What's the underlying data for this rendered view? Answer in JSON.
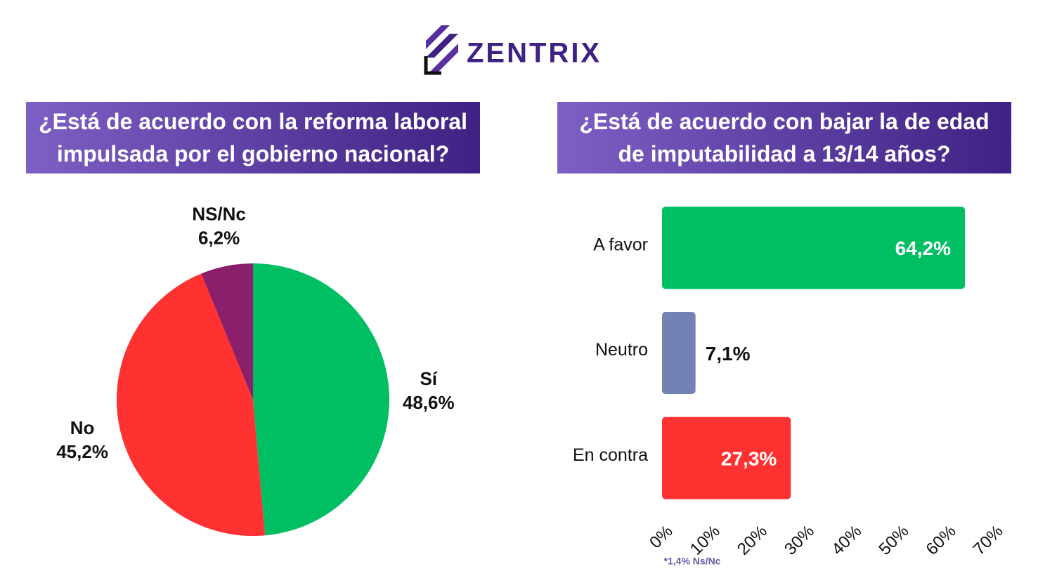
{
  "header": {
    "brand": "ZENTRIX"
  },
  "chart_data": [
    {
      "type": "pie",
      "title": "¿Está de acuerdo con la reforma laboral impulsada por el gobierno nacional?",
      "categories": [
        "Sí",
        "No",
        "NS/Nc"
      ],
      "values": [
        48.6,
        45.2,
        6.2
      ],
      "value_labels": [
        "48,6%",
        "45,2%",
        "6,2%"
      ],
      "colors": [
        "#00bf63",
        "#ff3131",
        "#8c1f6c"
      ]
    },
    {
      "type": "hbar",
      "title": "¿Está de acuerdo con bajar la de edad de imputabilidad a 13/14 años?",
      "categories": [
        "A favor",
        "Neutro",
        "En contra"
      ],
      "values": [
        64.2,
        7.1,
        27.3
      ],
      "value_labels": [
        "64,2%",
        "7,1%",
        "27,3%"
      ],
      "colors": [
        "#00bf63",
        "#7382b5",
        "#ff3131"
      ],
      "xlim": [
        0,
        70
      ],
      "xticks": [
        {
          "value": 0,
          "label": "0%"
        },
        {
          "value": 10,
          "label": "10%"
        },
        {
          "value": 20,
          "label": "20%"
        },
        {
          "value": 30,
          "label": "30%"
        },
        {
          "value": 40,
          "label": "40%"
        },
        {
          "value": 50,
          "label": "50%"
        },
        {
          "value": 60,
          "label": "60%"
        },
        {
          "value": 70,
          "label": "70%"
        }
      ],
      "note": "*1,4% Ns/Nc"
    }
  ]
}
